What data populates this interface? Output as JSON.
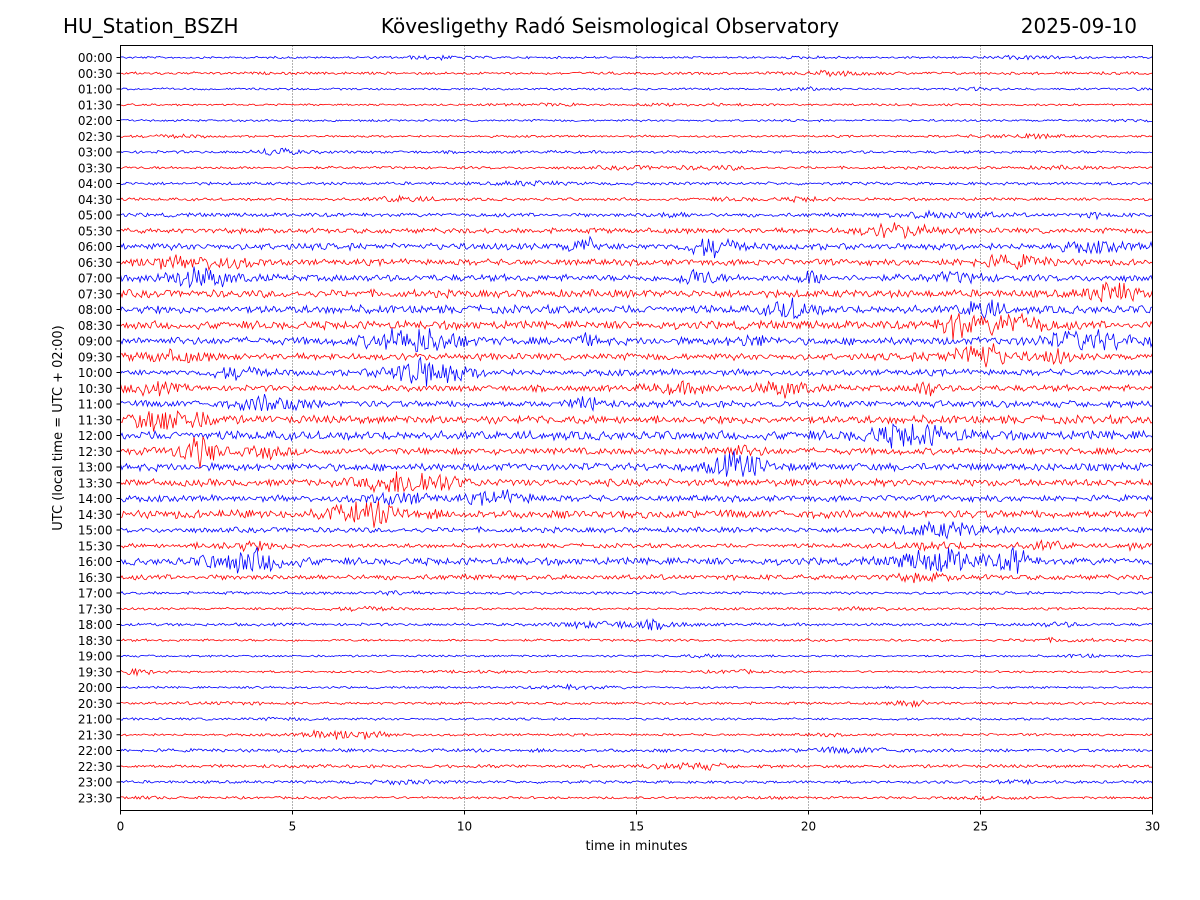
{
  "header": {
    "station": "HU_Station_BSZH",
    "observatory": "Kövesligethy Radó Seismological Observatory",
    "date": "2025-09-10"
  },
  "chart_data": {
    "type": "line",
    "xlabel": "time in minutes",
    "ylabel": "UTC (local time = UTC + 02:00)",
    "xlim": [
      0,
      30
    ],
    "x_ticks": [
      0,
      5,
      10,
      15,
      20,
      25,
      30
    ],
    "grid": "vertical dotted at 5-minute ticks",
    "colors": {
      "even_rows": "#0000ff",
      "odd_rows": "#ff0000"
    },
    "rows": [
      {
        "label": "00:00",
        "activity": 0.12
      },
      {
        "label": "00:30",
        "activity": 0.18
      },
      {
        "label": "01:00",
        "activity": 0.12
      },
      {
        "label": "01:30",
        "activity": 0.1
      },
      {
        "label": "02:00",
        "activity": 0.12
      },
      {
        "label": "02:30",
        "activity": 0.12
      },
      {
        "label": "03:00",
        "activity": 0.2
      },
      {
        "label": "03:30",
        "activity": 0.18
      },
      {
        "label": "04:00",
        "activity": 0.22
      },
      {
        "label": "04:30",
        "activity": 0.2
      },
      {
        "label": "05:00",
        "activity": 0.3
      },
      {
        "label": "05:30",
        "activity": 0.45
      },
      {
        "label": "06:00",
        "activity": 0.6
      },
      {
        "label": "06:30",
        "activity": 0.55
      },
      {
        "label": "07:00",
        "activity": 0.6
      },
      {
        "label": "07:30",
        "activity": 0.7
      },
      {
        "label": "08:00",
        "activity": 0.75
      },
      {
        "label": "08:30",
        "activity": 0.75
      },
      {
        "label": "09:00",
        "activity": 0.7
      },
      {
        "label": "09:30",
        "activity": 0.6
      },
      {
        "label": "10:00",
        "activity": 0.55
      },
      {
        "label": "10:30",
        "activity": 0.55
      },
      {
        "label": "11:00",
        "activity": 0.6
      },
      {
        "label": "11:30",
        "activity": 0.75
      },
      {
        "label": "12:00",
        "activity": 0.85
      },
      {
        "label": "12:30",
        "activity": 0.6
      },
      {
        "label": "13:00",
        "activity": 0.7
      },
      {
        "label": "13:30",
        "activity": 0.65
      },
      {
        "label": "14:00",
        "activity": 0.55
      },
      {
        "label": "14:30",
        "activity": 0.75
      },
      {
        "label": "15:00",
        "activity": 0.45
      },
      {
        "label": "15:30",
        "activity": 0.35
      },
      {
        "label": "16:00",
        "activity": 0.65
      },
      {
        "label": "16:30",
        "activity": 0.45
      },
      {
        "label": "17:00",
        "activity": 0.2
      },
      {
        "label": "17:30",
        "activity": 0.15
      },
      {
        "label": "18:00",
        "activity": 0.2
      },
      {
        "label": "18:30",
        "activity": 0.15
      },
      {
        "label": "19:00",
        "activity": 0.12
      },
      {
        "label": "19:30",
        "activity": 0.12
      },
      {
        "label": "20:00",
        "activity": 0.12
      },
      {
        "label": "20:30",
        "activity": 0.18
      },
      {
        "label": "21:00",
        "activity": 0.15
      },
      {
        "label": "21:30",
        "activity": 0.15
      },
      {
        "label": "22:00",
        "activity": 0.25
      },
      {
        "label": "22:30",
        "activity": 0.25
      },
      {
        "label": "23:00",
        "activity": 0.2
      },
      {
        "label": "23:30",
        "activity": 0.15
      }
    ]
  }
}
